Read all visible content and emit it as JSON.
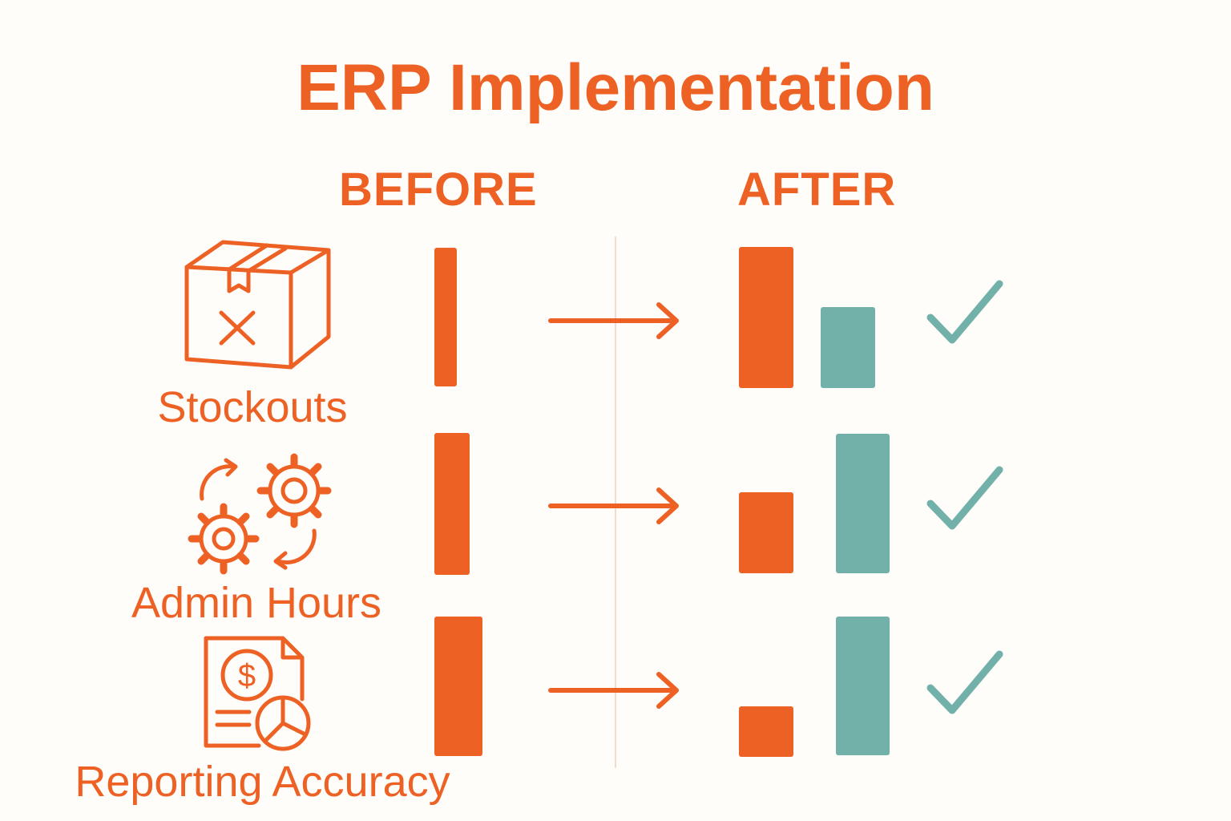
{
  "title": "ERP Implementation",
  "columns": {
    "before": "BEFORE",
    "after": "AFTER"
  },
  "colors": {
    "primary": "#EE6124",
    "accent": "#72B0AA",
    "background": "#FEFDF9"
  },
  "rows": [
    {
      "label": "Stockouts",
      "icon": "box-with-x-icon"
    },
    {
      "label": "Admin Hours",
      "icon": "gears-cycle-icon"
    },
    {
      "label": "Reporting Accuracy",
      "icon": "financial-report-icon"
    }
  ]
}
